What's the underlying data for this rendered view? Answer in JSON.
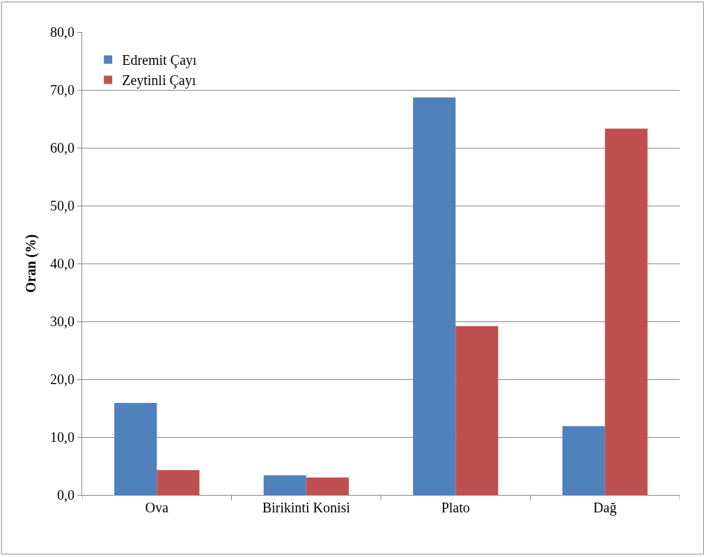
{
  "chart_data": {
    "type": "bar",
    "ylabel": "Oran (%)",
    "categories": [
      "Ova",
      "Birikinti Konisi",
      "Plato",
      "Dağ"
    ],
    "series": [
      {
        "name": "Edremit Çayı",
        "color": "#4f81bd",
        "values": [
          15.9,
          3.4,
          68.7,
          11.9
        ]
      },
      {
        "name": "Zeytinli Çayı",
        "color": "#c0504d",
        "values": [
          4.3,
          3.0,
          29.2,
          63.3
        ]
      }
    ],
    "ylim": [
      0,
      80
    ],
    "yticks": [
      {
        "value": 0,
        "label": "0,0"
      },
      {
        "value": 10,
        "label": "10,0"
      },
      {
        "value": 20,
        "label": "20,0"
      },
      {
        "value": 30,
        "label": "30,0"
      },
      {
        "value": 40,
        "label": "40,0"
      },
      {
        "value": 50,
        "label": "50,0"
      },
      {
        "value": 60,
        "label": "60,0"
      },
      {
        "value": 70,
        "label": "70,0"
      },
      {
        "value": 80,
        "label": "80,0"
      }
    ],
    "grid": "y",
    "legend": "top left"
  }
}
